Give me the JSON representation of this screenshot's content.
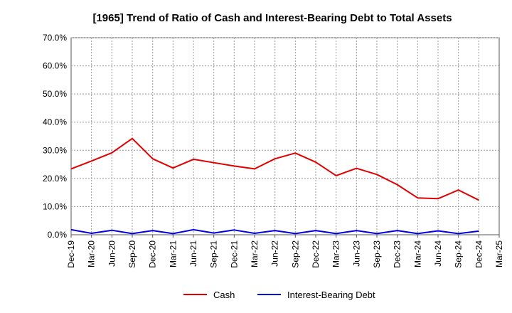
{
  "chart_data": {
    "type": "line",
    "title": "[1965]  Trend of Ratio of Cash and Interest-Bearing Debt to Total Assets",
    "xlabel": "",
    "ylabel": "",
    "ylim": [
      0,
      0.7
    ],
    "yticks": [
      "0.0%",
      "10.0%",
      "20.0%",
      "30.0%",
      "40.0%",
      "50.0%",
      "60.0%",
      "70.0%"
    ],
    "categories": [
      "Dec-19",
      "Mar-20",
      "Jun-20",
      "Sep-20",
      "Dec-20",
      "Mar-21",
      "Jun-21",
      "Sep-21",
      "Dec-21",
      "Mar-22",
      "Jun-22",
      "Sep-22",
      "Dec-22",
      "Mar-23",
      "Jun-23",
      "Sep-23",
      "Dec-23",
      "Mar-24",
      "Jun-24",
      "Sep-24",
      "Dec-24",
      "Mar-25"
    ],
    "grid": true,
    "legend_position": "bottom",
    "series": [
      {
        "name": "Cash",
        "color": "#e00000",
        "values": [
          0.234,
          0.262,
          0.291,
          0.342,
          0.27,
          0.237,
          0.268,
          0.256,
          0.244,
          0.234,
          0.27,
          0.29,
          0.258,
          0.21,
          0.236,
          0.214,
          0.178,
          0.131,
          0.128,
          0.159,
          0.123,
          null
        ]
      },
      {
        "name": "Interest-Bearing Debt",
        "color": "#0000e0",
        "values": [
          0.018,
          0.005,
          0.016,
          0.004,
          0.015,
          0.004,
          0.018,
          0.006,
          0.017,
          0.005,
          0.015,
          0.004,
          0.015,
          0.004,
          0.015,
          0.004,
          0.015,
          0.004,
          0.014,
          0.004,
          0.013,
          null
        ]
      }
    ]
  }
}
